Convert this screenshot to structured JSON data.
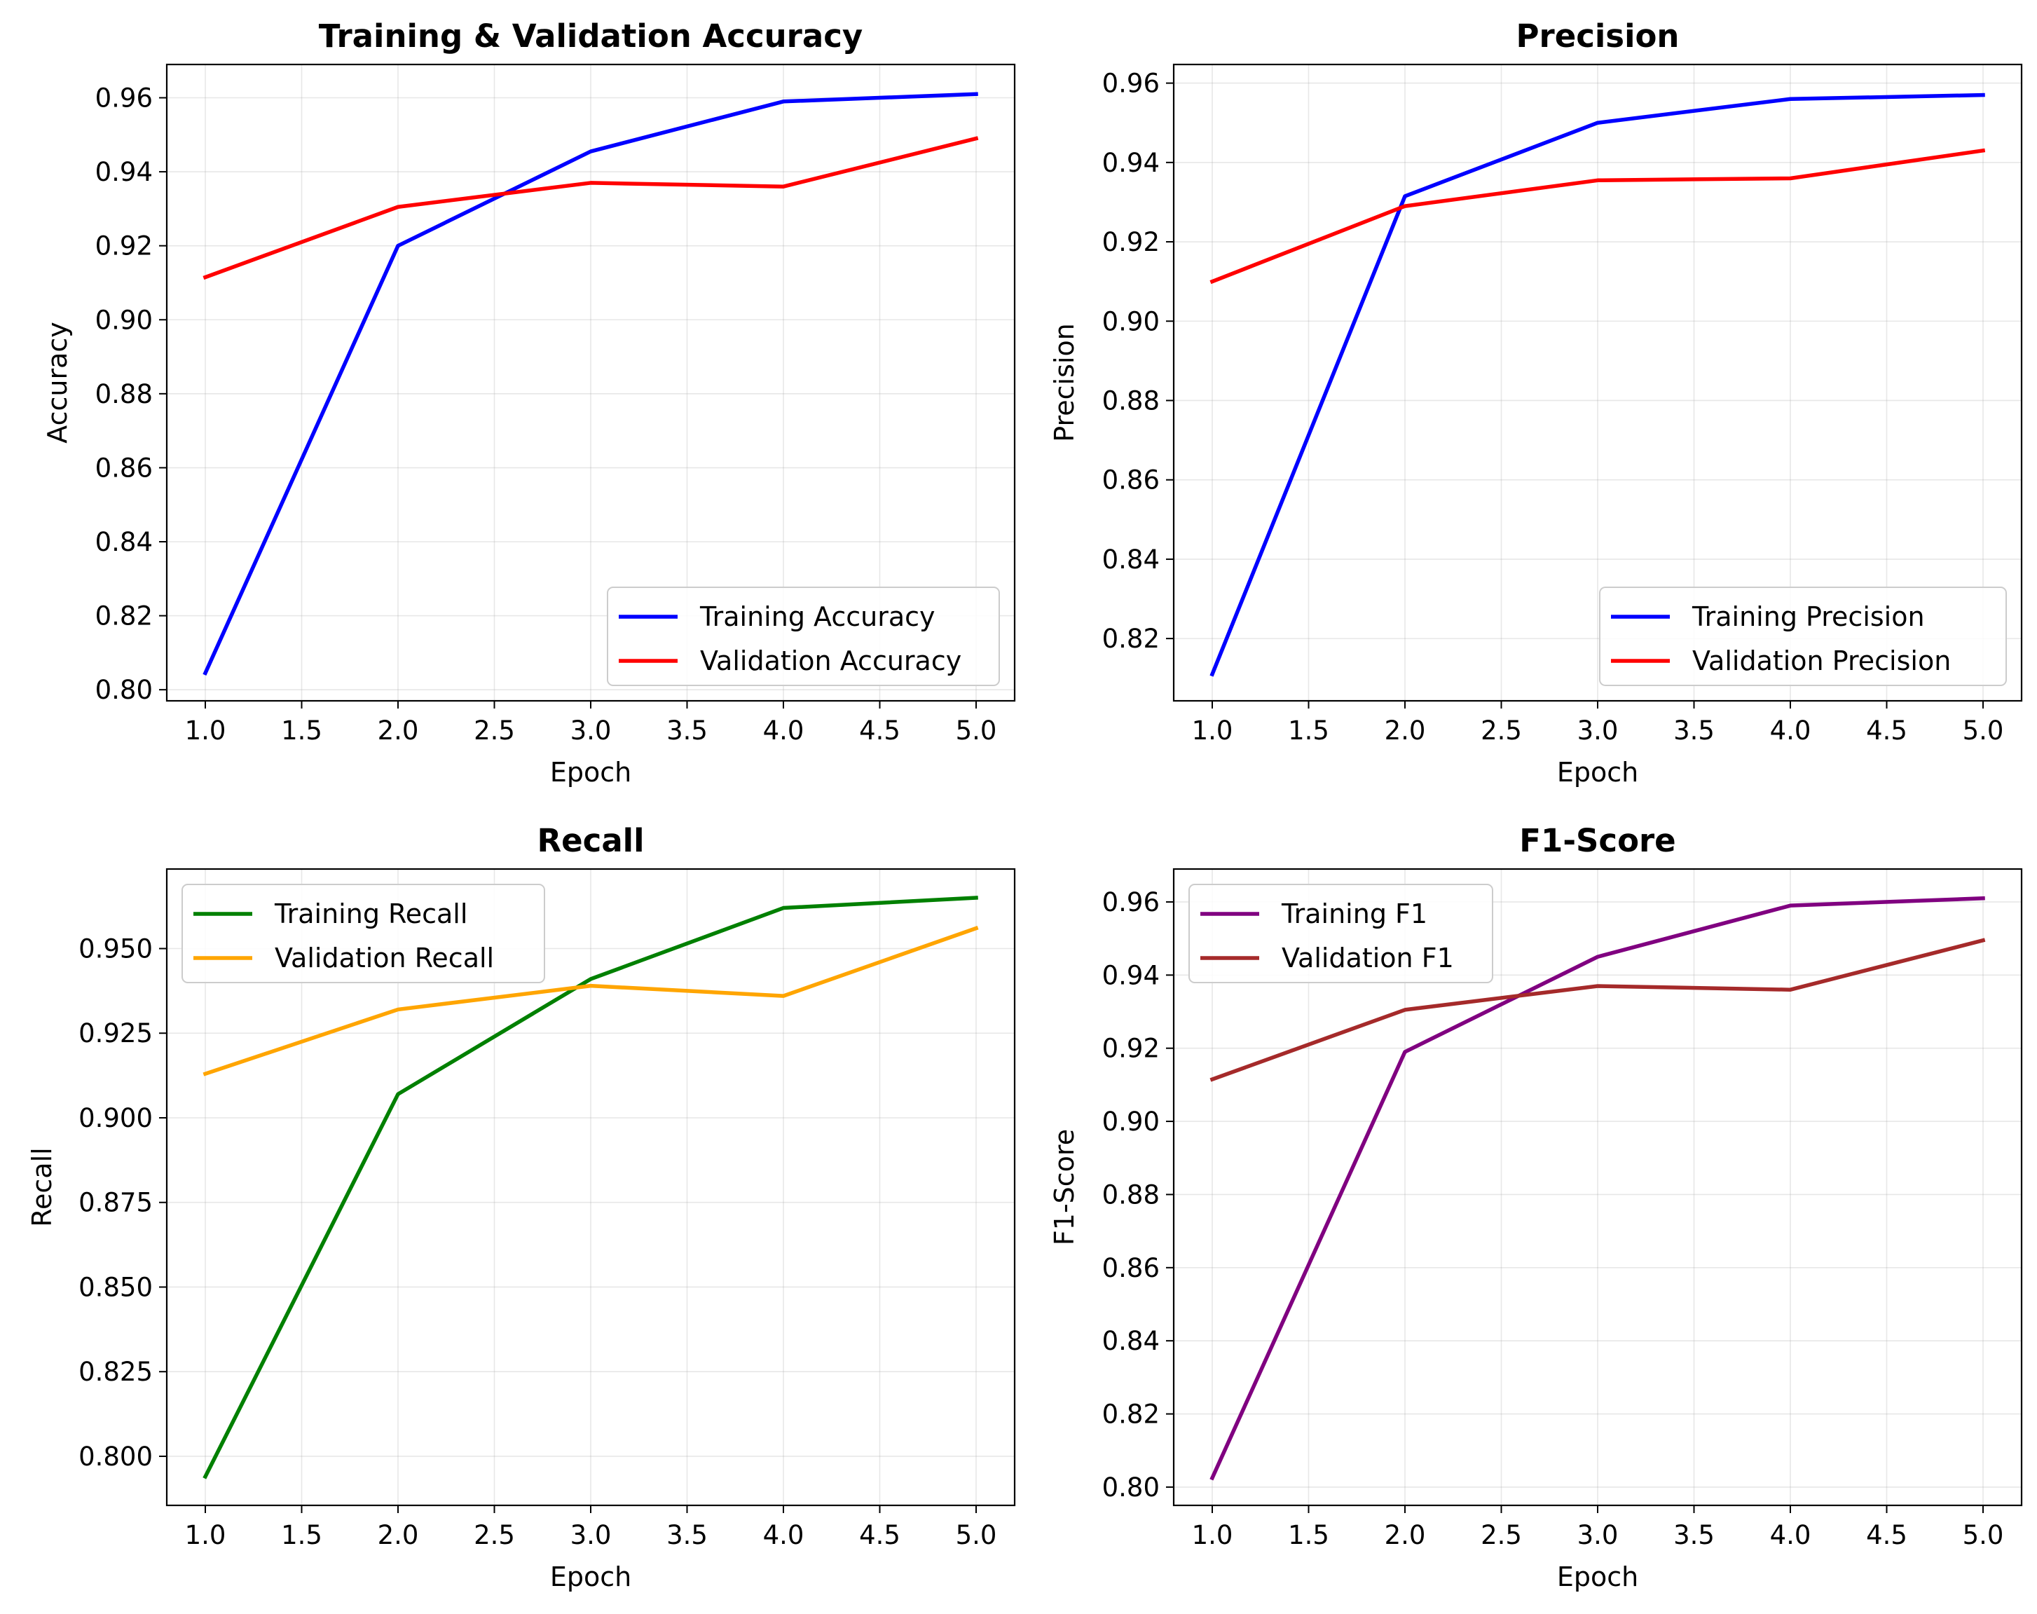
{
  "chart_data": [
    {
      "type": "line",
      "title": "Training & Validation Accuracy",
      "xlabel": "Epoch",
      "ylabel": "Accuracy",
      "x": [
        1,
        2,
        3,
        4,
        5
      ],
      "xlim": [
        0.8,
        5.2
      ],
      "ylim": [
        0.797,
        0.969
      ],
      "xticks": [
        "1.0",
        "1.5",
        "2.0",
        "2.5",
        "3.0",
        "3.5",
        "4.0",
        "4.5",
        "5.0"
      ],
      "yticks": [
        "0.80",
        "0.82",
        "0.84",
        "0.86",
        "0.88",
        "0.90",
        "0.92",
        "0.94",
        "0.96"
      ],
      "grid": true,
      "legend_position": "lower-right",
      "series": [
        {
          "name": "Training Accuracy",
          "color": "#0000ff",
          "values": [
            0.8045,
            0.92,
            0.9455,
            0.959,
            0.961
          ]
        },
        {
          "name": "Validation Accuracy",
          "color": "#ff0000",
          "values": [
            0.9115,
            0.9305,
            0.937,
            0.936,
            0.949
          ]
        }
      ]
    },
    {
      "type": "line",
      "title": "Precision",
      "xlabel": "Epoch",
      "ylabel": "Precision",
      "x": [
        1,
        2,
        3,
        4,
        5
      ],
      "xlim": [
        0.8,
        5.2
      ],
      "ylim": [
        0.8043,
        0.9647
      ],
      "xticks": [
        "1.0",
        "1.5",
        "2.0",
        "2.5",
        "3.0",
        "3.5",
        "4.0",
        "4.5",
        "5.0"
      ],
      "yticks": [
        "0.82",
        "0.84",
        "0.86",
        "0.88",
        "0.90",
        "0.92",
        "0.94",
        "0.96"
      ],
      "grid": true,
      "legend_position": "lower-right",
      "series": [
        {
          "name": "Training Precision",
          "color": "#0000ff",
          "values": [
            0.811,
            0.9315,
            0.95,
            0.956,
            0.957
          ]
        },
        {
          "name": "Validation Precision",
          "color": "#ff0000",
          "values": [
            0.91,
            0.929,
            0.9355,
            0.936,
            0.943
          ]
        }
      ]
    },
    {
      "type": "line",
      "title": "Recall",
      "xlabel": "Epoch",
      "ylabel": "Recall",
      "x": [
        1,
        2,
        3,
        4,
        5
      ],
      "xlim": [
        0.8,
        5.2
      ],
      "ylim": [
        0.7855,
        0.9735
      ],
      "xticks": [
        "1.0",
        "1.5",
        "2.0",
        "2.5",
        "3.0",
        "3.5",
        "4.0",
        "4.5",
        "5.0"
      ],
      "yticks": [
        "0.800",
        "0.825",
        "0.850",
        "0.875",
        "0.900",
        "0.925",
        "0.950"
      ],
      "grid": true,
      "legend_position": "upper-left",
      "series": [
        {
          "name": "Training Recall",
          "color": "#008000",
          "values": [
            0.794,
            0.907,
            0.941,
            0.962,
            0.965
          ]
        },
        {
          "name": "Validation Recall",
          "color": "#ffa500",
          "values": [
            0.913,
            0.932,
            0.939,
            0.936,
            0.956
          ]
        }
      ]
    },
    {
      "type": "line",
      "title": "F1-Score",
      "xlabel": "Epoch",
      "ylabel": "F1-Score",
      "x": [
        1,
        2,
        3,
        4,
        5
      ],
      "xlim": [
        0.8,
        5.2
      ],
      "ylim": [
        0.795,
        0.969
      ],
      "xticks": [
        "1.0",
        "1.5",
        "2.0",
        "2.5",
        "3.0",
        "3.5",
        "4.0",
        "4.5",
        "5.0"
      ],
      "yticks": [
        "0.80",
        "0.82",
        "0.84",
        "0.86",
        "0.88",
        "0.90",
        "0.92",
        "0.94",
        "0.96"
      ],
      "grid": true,
      "legend_position": "upper-left",
      "series": [
        {
          "name": "Training F1",
          "color": "#800080",
          "values": [
            0.8025,
            0.919,
            0.945,
            0.959,
            0.961
          ]
        },
        {
          "name": "Validation F1",
          "color": "#a52a2a",
          "values": [
            0.9115,
            0.9305,
            0.937,
            0.936,
            0.9495
          ]
        }
      ]
    }
  ]
}
